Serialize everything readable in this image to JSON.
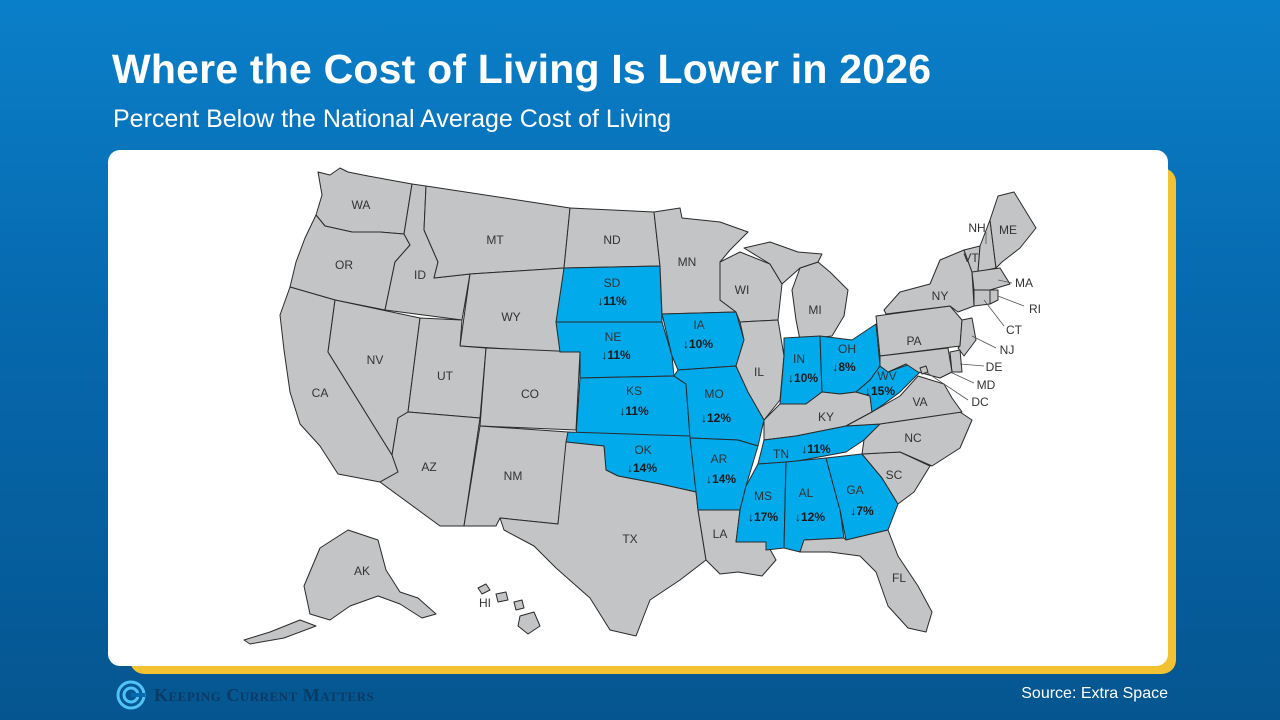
{
  "header": {
    "title": "Where the Cost of Living Is Lower in 2026",
    "subtitle": "Percent Below the National Average Cost of Living"
  },
  "footer": {
    "logo_text": "Keeping Current Matters",
    "source": "Source: Extra Space"
  },
  "colors": {
    "highlight": "#00aaeb",
    "base_state": "#c2c4c5",
    "card_accent": "#f2c232",
    "background": "#0668ad"
  },
  "map": {
    "highlight_arrow": "↓",
    "states": {
      "WA": {
        "label": "WA"
      },
      "OR": {
        "label": "OR"
      },
      "CA": {
        "label": "CA"
      },
      "ID": {
        "label": "ID"
      },
      "NV": {
        "label": "NV"
      },
      "MT": {
        "label": "MT"
      },
      "WY": {
        "label": "WY"
      },
      "UT": {
        "label": "UT"
      },
      "AZ": {
        "label": "AZ"
      },
      "CO": {
        "label": "CO"
      },
      "NM": {
        "label": "NM"
      },
      "ND": {
        "label": "ND"
      },
      "SD": {
        "label": "SD",
        "value": "11%"
      },
      "NE": {
        "label": "NE",
        "value": "11%"
      },
      "KS": {
        "label": "KS",
        "value": "11%"
      },
      "OK": {
        "label": "OK",
        "value": "14%"
      },
      "TX": {
        "label": "TX"
      },
      "MN": {
        "label": "MN"
      },
      "IA": {
        "label": "IA",
        "value": "10%"
      },
      "MO": {
        "label": "MO",
        "value": "12%"
      },
      "AR": {
        "label": "AR",
        "value": "14%"
      },
      "LA": {
        "label": "LA"
      },
      "WI": {
        "label": "WI"
      },
      "IL": {
        "label": "IL"
      },
      "MI": {
        "label": "MI"
      },
      "IN": {
        "label": "IN",
        "value": "10%"
      },
      "OH": {
        "label": "OH",
        "value": "8%"
      },
      "KY": {
        "label": "KY"
      },
      "TN": {
        "label": "TN",
        "value": "11%"
      },
      "MS": {
        "label": "MS",
        "value": "17%"
      },
      "AL": {
        "label": "AL",
        "value": "12%"
      },
      "GA": {
        "label": "GA",
        "value": "7%"
      },
      "FL": {
        "label": "FL"
      },
      "SC": {
        "label": "SC"
      },
      "NC": {
        "label": "NC"
      },
      "VA": {
        "label": "VA"
      },
      "WV": {
        "label": "WV",
        "value": "15%"
      },
      "PA": {
        "label": "PA"
      },
      "NY": {
        "label": "NY"
      },
      "VT": {
        "label": "VT"
      },
      "NH": {
        "label": "NH"
      },
      "ME": {
        "label": "ME"
      },
      "MA": {
        "label": "MA"
      },
      "RI": {
        "label": "RI"
      },
      "CT": {
        "label": "CT"
      },
      "NJ": {
        "label": "NJ"
      },
      "DE": {
        "label": "DE"
      },
      "MD": {
        "label": "MD"
      },
      "DC": {
        "label": "DC"
      },
      "AK": {
        "label": "AK"
      },
      "HI": {
        "label": "HI"
      }
    }
  }
}
